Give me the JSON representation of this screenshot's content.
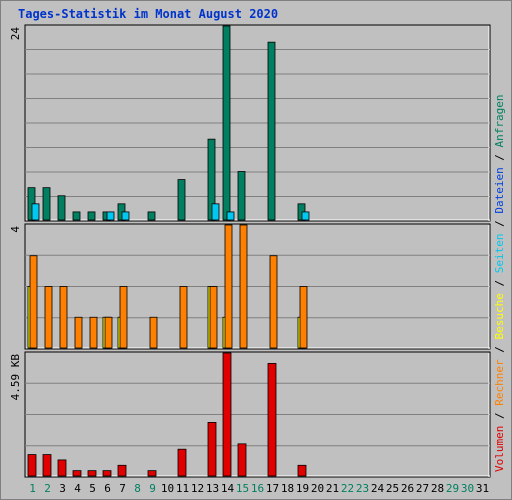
{
  "title": "Tages-Statistik im Monat August 2020",
  "side_legend": [
    {
      "text": "Volumen",
      "color": "#e00000"
    },
    {
      "text": " / ",
      "color": "#000000"
    },
    {
      "text": "Rechner",
      "color": "#ff8000"
    },
    {
      "text": " / ",
      "color": "#000000"
    },
    {
      "text": "Besuche",
      "color": "#ffff00"
    },
    {
      "text": " / ",
      "color": "#000000"
    },
    {
      "text": "Seiten",
      "color": "#00c8f0"
    },
    {
      "text": " / ",
      "color": "#000000"
    },
    {
      "text": "Dateien",
      "color": "#0040e0"
    },
    {
      "text": " / ",
      "color": "#000000"
    },
    {
      "text": "Anfragen",
      "color": "#008060"
    }
  ],
  "chart_data": [
    {
      "type": "bar",
      "panel": "top",
      "y_max_label": "24",
      "ylim": [
        0,
        24
      ],
      "x": [
        1,
        2,
        3,
        4,
        5,
        6,
        7,
        8,
        9,
        10,
        11,
        12,
        13,
        14,
        15,
        16,
        17,
        18,
        19,
        20,
        21,
        22,
        23,
        24,
        25,
        26,
        27,
        28,
        29,
        30,
        31
      ],
      "series": [
        {
          "name": "Anfragen",
          "color": "#008060",
          "values": [
            4,
            4,
            3,
            1,
            1,
            1,
            2,
            0,
            1,
            0,
            5,
            0,
            10,
            24,
            6,
            0,
            22,
            0,
            2,
            0,
            0,
            0,
            0,
            0,
            0,
            0,
            0,
            0,
            0,
            0,
            0
          ]
        },
        {
          "name": "Seiten",
          "color": "#00c8f0",
          "values": [
            2,
            0,
            0,
            0,
            0,
            1,
            1,
            0,
            0,
            0,
            0,
            0,
            2,
            1,
            0,
            0,
            0,
            0,
            1,
            0,
            0,
            0,
            0,
            0,
            0,
            0,
            0,
            0,
            0,
            0,
            0
          ]
        }
      ]
    },
    {
      "type": "bar",
      "panel": "middle",
      "y_max_label": "4",
      "ylim": [
        0,
        4
      ],
      "x": [
        1,
        2,
        3,
        4,
        5,
        6,
        7,
        8,
        9,
        10,
        11,
        12,
        13,
        14,
        15,
        16,
        17,
        18,
        19,
        20,
        21,
        22,
        23,
        24,
        25,
        26,
        27,
        28,
        29,
        30,
        31
      ],
      "series": [
        {
          "name": "Besuche",
          "color": "#ffff00",
          "values": [
            2,
            0,
            0,
            0,
            0,
            1,
            1,
            0,
            0,
            0,
            0,
            0,
            2,
            1,
            0,
            0,
            0,
            0,
            1,
            0,
            0,
            0,
            0,
            0,
            0,
            0,
            0,
            0,
            0,
            0,
            0
          ]
        },
        {
          "name": "Rechner",
          "color": "#ff8000",
          "values": [
            3,
            2,
            2,
            1,
            1,
            1,
            2,
            0,
            1,
            0,
            2,
            0,
            2,
            4,
            4,
            0,
            3,
            0,
            2,
            0,
            0,
            0,
            0,
            0,
            0,
            0,
            0,
            0,
            0,
            0,
            0
          ]
        }
      ]
    },
    {
      "type": "bar",
      "panel": "bottom",
      "y_max_label": "4.59 KB",
      "ylim": [
        0,
        4.59
      ],
      "x": [
        1,
        2,
        3,
        4,
        5,
        6,
        7,
        8,
        9,
        10,
        11,
        12,
        13,
        14,
        15,
        16,
        17,
        18,
        19,
        20,
        21,
        22,
        23,
        24,
        25,
        26,
        27,
        28,
        29,
        30,
        31
      ],
      "series": [
        {
          "name": "Volumen",
          "color": "#e00000",
          "values": [
            0.8,
            0.8,
            0.6,
            0.2,
            0.2,
            0.2,
            0.4,
            0,
            0.2,
            0,
            1.0,
            0,
            2.0,
            4.59,
            1.2,
            0,
            4.2,
            0,
            0.4,
            0,
            0,
            0,
            0,
            0,
            0,
            0,
            0,
            0,
            0,
            0,
            0
          ]
        }
      ]
    }
  ],
  "x_tick_colors": {
    "weekend": "#008060",
    "weekday": "#000000",
    "weekend_days": [
      1,
      2,
      8,
      9,
      15,
      16,
      22,
      23,
      29,
      30
    ]
  }
}
